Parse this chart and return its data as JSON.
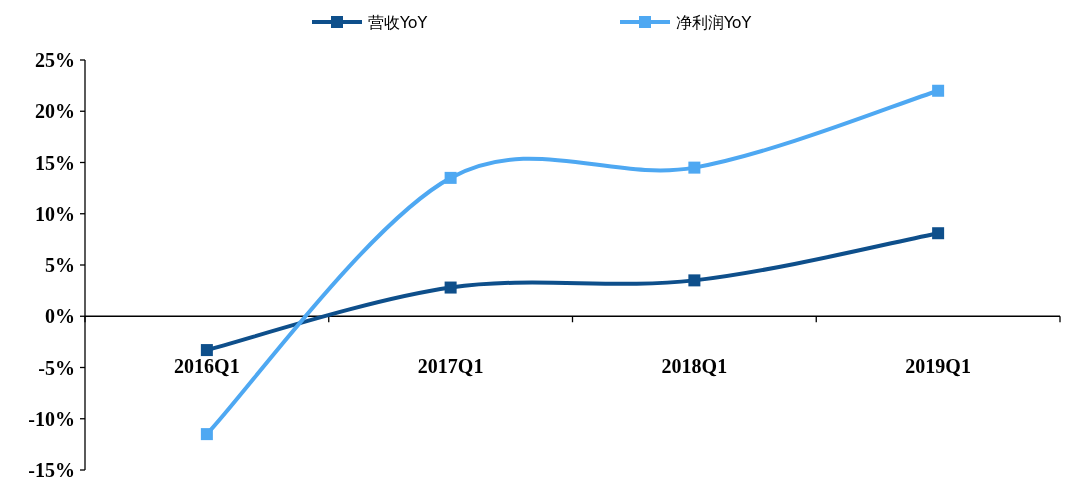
{
  "chart_data": {
    "type": "line",
    "categories": [
      "2016Q1",
      "2017Q1",
      "2018Q1",
      "2019Q1"
    ],
    "series": [
      {
        "name": "营收YoY",
        "color": "#0e4f8b",
        "values": [
          -3.3,
          2.8,
          3.5,
          8.1
        ]
      },
      {
        "name": "净利润YoY",
        "color": "#4ea8f2",
        "values": [
          -11.5,
          13.5,
          14.5,
          22.0
        ]
      }
    ],
    "ylim": [
      -15,
      25
    ],
    "yticks": [
      {
        "value": -15,
        "label": "-15%"
      },
      {
        "value": -10,
        "label": "-10%"
      },
      {
        "value": -5,
        "label": "-5%"
      },
      {
        "value": 0,
        "label": "0%"
      },
      {
        "value": 5,
        "label": "5%"
      },
      {
        "value": 10,
        "label": "10%"
      },
      {
        "value": 15,
        "label": "15%"
      },
      {
        "value": 20,
        "label": "20%"
      },
      {
        "value": 25,
        "label": "25%"
      }
    ],
    "marker": "square",
    "line_style": "solid",
    "legend": "top"
  }
}
